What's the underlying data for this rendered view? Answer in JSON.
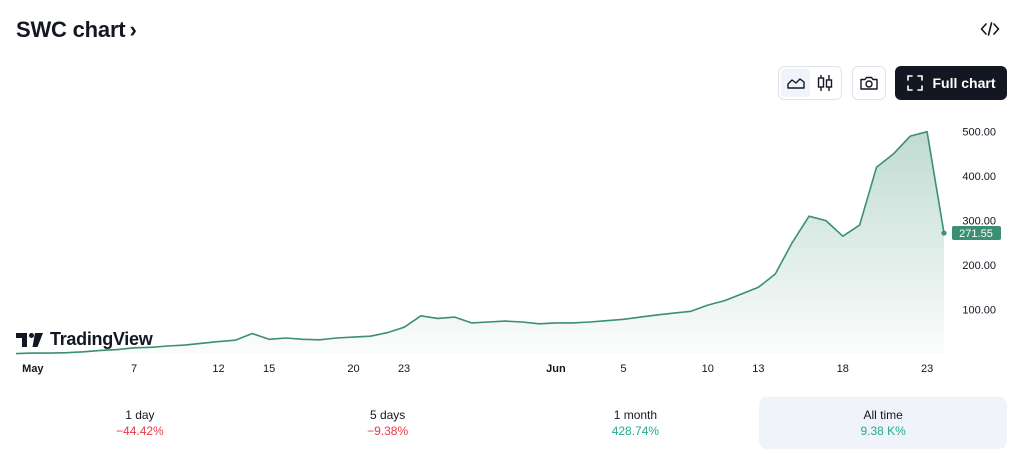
{
  "header": {
    "title": "SWC chart",
    "chevron": "›",
    "embed_icon": "code-brackets-icon"
  },
  "toolbar": {
    "line_icon": "area-chart-icon",
    "candles_icon": "candlestick-icon",
    "snapshot_icon": "camera-icon",
    "full_chart_label": "Full chart",
    "full_chart_icon": "fullscreen-icon"
  },
  "branding": {
    "logo_text": "TradingView"
  },
  "colors": {
    "line": "#3a8f74",
    "fill_top": "#3a8f74",
    "price_label_bg": "#3a8f74",
    "negative": "#f23645",
    "positive": "#22ab94"
  },
  "chart_data": {
    "type": "area",
    "x": [
      "Apr 30",
      "May 1",
      "May 2",
      "May 3",
      "May 4",
      "May 5",
      "May 6",
      "May 7",
      "May 8",
      "May 9",
      "May 10",
      "May 11",
      "May 12",
      "May 13",
      "May 14",
      "May 15",
      "May 16",
      "May 17",
      "May 18",
      "May 19",
      "May 20",
      "May 21",
      "May 22",
      "May 23",
      "May 24",
      "May 25",
      "May 26",
      "May 27",
      "May 28",
      "May 29",
      "May 30",
      "May 31",
      "Jun 1",
      "Jun 2",
      "Jun 3",
      "Jun 4",
      "Jun 5",
      "Jun 6",
      "Jun 7",
      "Jun 8",
      "Jun 9",
      "Jun 10",
      "Jun 11",
      "Jun 12",
      "Jun 13",
      "Jun 14",
      "Jun 15",
      "Jun 16",
      "Jun 17",
      "Jun 18",
      "Jun 19",
      "Jun 20",
      "Jun 21",
      "Jun 22",
      "Jun 23",
      "Jun 24"
    ],
    "values": [
      1,
      2,
      2,
      3,
      5,
      8,
      10,
      14,
      15,
      18,
      20,
      24,
      28,
      31,
      46,
      33,
      36,
      33,
      32,
      36,
      38,
      40,
      48,
      60,
      86,
      80,
      83,
      70,
      72,
      74,
      72,
      68,
      70,
      70,
      72,
      75,
      78,
      83,
      88,
      92,
      96,
      110,
      120,
      135,
      150,
      180,
      250,
      310,
      300,
      265,
      290,
      420,
      450,
      490,
      500,
      272
    ],
    "x_ticks": [
      {
        "index": 1,
        "label": "May",
        "bold": true
      },
      {
        "index": 7,
        "label": "7"
      },
      {
        "index": 12,
        "label": "12"
      },
      {
        "index": 15,
        "label": "15"
      },
      {
        "index": 20,
        "label": "20"
      },
      {
        "index": 23,
        "label": "23"
      },
      {
        "index": 32,
        "label": "Jun",
        "bold": true
      },
      {
        "index": 36,
        "label": "5"
      },
      {
        "index": 41,
        "label": "10"
      },
      {
        "index": 44,
        "label": "13"
      },
      {
        "index": 49,
        "label": "18"
      },
      {
        "index": 54,
        "label": "23"
      }
    ],
    "y_ticks": [
      "100.00",
      "200.00",
      "300.00",
      "400.00",
      "500.00"
    ],
    "ylim": [
      0,
      560
    ],
    "last_price": "271.55",
    "grid": false
  },
  "periods": [
    {
      "label": "1 day",
      "value": "−44.42%",
      "trend": "neg",
      "active": false
    },
    {
      "label": "5 days",
      "value": "−9.38%",
      "trend": "neg",
      "active": false
    },
    {
      "label": "1 month",
      "value": "428.74%",
      "trend": "pos",
      "active": false
    },
    {
      "label": "All time",
      "value": "9.38 K%",
      "trend": "pos",
      "active": true
    }
  ]
}
